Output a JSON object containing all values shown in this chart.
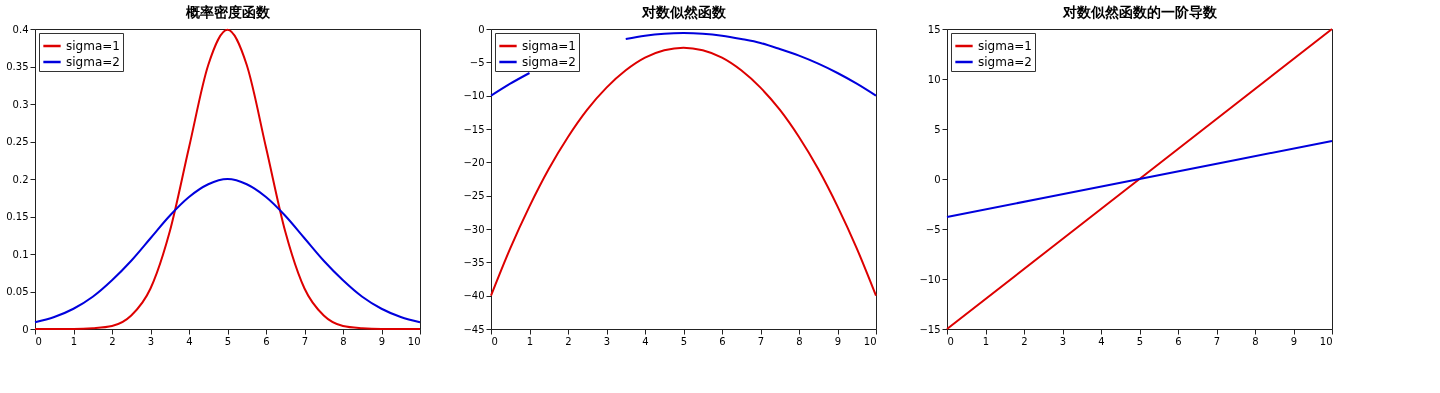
{
  "chart_data": [
    {
      "type": "line",
      "title": "概率密度函数",
      "x": [
        0,
        0.5,
        1,
        1.5,
        2,
        2.5,
        3,
        3.5,
        4,
        4.5,
        5,
        5.5,
        6,
        6.5,
        7,
        7.5,
        8,
        8.5,
        9,
        9.5,
        10
      ],
      "series": [
        {
          "name": "sigma=1",
          "color": "#dd0000",
          "values": [
            0,
            0,
            0,
            0.001,
            0.004,
            0.018,
            0.054,
            0.13,
            0.242,
            0.352,
            0.399,
            0.352,
            0.242,
            0.13,
            0.054,
            0.018,
            0.004,
            0.001,
            0,
            0,
            0
          ]
        },
        {
          "name": "sigma=2",
          "color": "#0000dd",
          "values": [
            0.009,
            0.016,
            0.027,
            0.043,
            0.065,
            0.091,
            0.121,
            0.151,
            0.176,
            0.193,
            0.2,
            0.193,
            0.176,
            0.151,
            0.121,
            0.091,
            0.065,
            0.043,
            0.027,
            0.016,
            0.009
          ]
        }
      ],
      "xlim": [
        0,
        10
      ],
      "xticks": [
        0,
        1,
        2,
        3,
        4,
        5,
        6,
        7,
        8,
        9,
        10
      ],
      "ylim": [
        0,
        0.4
      ],
      "yticks": [
        0,
        0.05,
        0.1,
        0.15,
        0.2,
        0.25,
        0.3,
        0.35,
        0.4
      ],
      "legend": "top left",
      "grid": false
    },
    {
      "type": "line",
      "title": "对数似然函数",
      "x": [
        0,
        0.5,
        1,
        1.5,
        2,
        2.5,
        3,
        3.5,
        4,
        4.5,
        5,
        5.5,
        6,
        6.5,
        7,
        7.5,
        8,
        8.5,
        9,
        9.5,
        10
      ],
      "series": [
        {
          "name": "sigma=1",
          "color": "#dd0000",
          "values": [
            -40,
            -32.9,
            -26.6,
            -21,
            -16.2,
            -12.1,
            -8.8,
            -6.2,
            -4.3,
            -3.2,
            -2.8,
            -3.2,
            -4.3,
            -6.2,
            -8.8,
            -12.1,
            -16.2,
            -21,
            -26.6,
            -32.9,
            -40
          ]
        },
        {
          "name": "sigma=2",
          "color": "#0000dd",
          "values": [
            -10,
            -8.2,
            -6.6,
            null,
            null,
            null,
            null,
            -1.5,
            -1,
            -0.7,
            -0.6,
            -0.7,
            -1,
            -1.5,
            -2.1,
            -3,
            -4,
            -5.2,
            -6.6,
            -8.2,
            -10
          ]
        }
      ],
      "xlim": [
        0,
        10
      ],
      "xticks": [
        0,
        1,
        2,
        3,
        4,
        5,
        6,
        7,
        8,
        9,
        10
      ],
      "ylim": [
        -45,
        0
      ],
      "yticks": [
        -45,
        -40,
        -35,
        -30,
        -25,
        -20,
        -15,
        -10,
        -5,
        0
      ],
      "legend": "top left",
      "grid": false
    },
    {
      "type": "line",
      "title": "对数似然函数的一阶导数",
      "x": [
        0,
        5,
        10
      ],
      "series": [
        {
          "name": "sigma=1",
          "color": "#dd0000",
          "values": [
            -15,
            0,
            15
          ]
        },
        {
          "name": "sigma=2",
          "color": "#0000dd",
          "values": [
            -3.8,
            0,
            3.8
          ]
        }
      ],
      "xlim": [
        0,
        10
      ],
      "xticks": [
        0,
        1,
        2,
        3,
        4,
        5,
        6,
        7,
        8,
        9,
        10
      ],
      "ylim": [
        -15,
        15
      ],
      "yticks": [
        -15,
        -10,
        -5,
        0,
        5,
        10,
        15
      ],
      "legend": "top left",
      "grid": false
    }
  ]
}
